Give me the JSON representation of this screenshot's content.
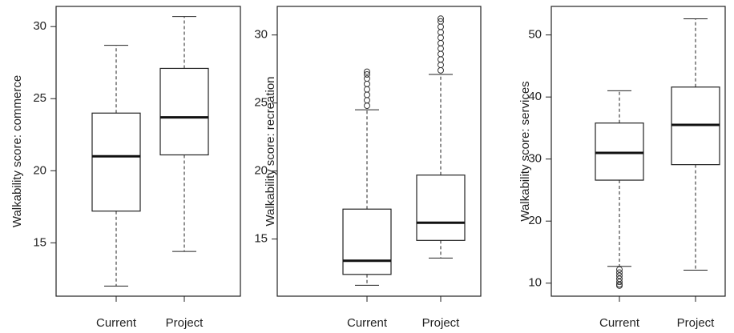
{
  "chart_data": [
    {
      "type": "box",
      "y_label": "Walkability score: commerce",
      "categories": [
        "Current",
        "Project"
      ],
      "boxes": [
        {
          "min": 12.0,
          "q1": 17.2,
          "median": 21.0,
          "q3": 24.0,
          "max": 28.7,
          "outliers": []
        },
        {
          "min": 14.4,
          "q1": 21.1,
          "median": 23.7,
          "q3": 27.1,
          "max": 30.7,
          "outliers": []
        }
      ],
      "ylim": [
        11.3,
        31.4
      ],
      "yticks": [
        15,
        20,
        25,
        30
      ]
    },
    {
      "type": "box",
      "y_label": "Walkability score: recreation",
      "categories": [
        "Current",
        "Project"
      ],
      "boxes": [
        {
          "min": 11.6,
          "q1": 12.4,
          "median": 13.4,
          "q3": 17.2,
          "max": 24.5,
          "outliers": [
            24.8,
            25.2,
            25.6,
            26.0,
            26.4,
            26.8,
            27.1,
            27.3
          ]
        },
        {
          "min": 13.6,
          "q1": 14.9,
          "median": 16.2,
          "q3": 19.7,
          "max": 27.1,
          "outliers": [
            27.4,
            27.8,
            28.2,
            28.6,
            29.0,
            29.4,
            29.8,
            30.2,
            30.6,
            31.0,
            31.2
          ]
        }
      ],
      "ylim": [
        10.8,
        32.1
      ],
      "yticks": [
        15,
        20,
        25,
        30
      ]
    },
    {
      "type": "box",
      "y_label": "Walkability score: services",
      "categories": [
        "Current",
        "Project"
      ],
      "boxes": [
        {
          "min": 12.7,
          "q1": 26.6,
          "median": 31.0,
          "q3": 35.8,
          "max": 41.0,
          "outliers": [
            12.2,
            11.7,
            11.2,
            10.7,
            10.2,
            9.8,
            9.6
          ]
        },
        {
          "min": 12.1,
          "q1": 29.1,
          "median": 35.5,
          "q3": 41.6,
          "max": 52.6,
          "outliers": []
        }
      ],
      "ylim": [
        7.9,
        54.6
      ],
      "yticks": [
        10,
        20,
        30,
        40,
        50
      ]
    }
  ]
}
